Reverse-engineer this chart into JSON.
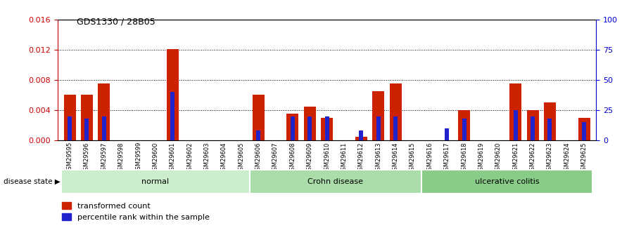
{
  "title": "GDS1330 / 28B05",
  "categories": [
    "GSM29595",
    "GSM29596",
    "GSM29597",
    "GSM29598",
    "GSM29599",
    "GSM29600",
    "GSM29601",
    "GSM29602",
    "GSM29603",
    "GSM29604",
    "GSM29605",
    "GSM29606",
    "GSM29607",
    "GSM29608",
    "GSM29609",
    "GSM29610",
    "GSM29611",
    "GSM29612",
    "GSM29613",
    "GSM29614",
    "GSM29615",
    "GSM29616",
    "GSM29617",
    "GSM29618",
    "GSM29619",
    "GSM29620",
    "GSM29621",
    "GSM29622",
    "GSM29623",
    "GSM29624",
    "GSM29625"
  ],
  "red_values": [
    0.006,
    0.006,
    0.0075,
    0.0,
    0.0,
    0.0,
    0.0121,
    0.0,
    0.0,
    0.0,
    0.0,
    0.006,
    0.0,
    0.0035,
    0.0045,
    0.003,
    0.0,
    0.0005,
    0.0065,
    0.0075,
    0.0,
    0.0,
    0.0,
    0.004,
    0.0,
    0.0,
    0.0075,
    0.004,
    0.005,
    0.0,
    0.003
  ],
  "blue_values_pct": [
    20,
    18,
    20,
    0,
    0,
    0,
    40,
    0,
    0,
    0,
    0,
    8,
    0,
    20,
    20,
    20,
    0,
    8,
    20,
    20,
    0,
    0,
    10,
    18,
    0,
    0,
    25,
    20,
    18,
    0,
    15
  ],
  "ylim_left": [
    0,
    0.016
  ],
  "ylim_right": [
    0,
    100
  ],
  "yticks_left": [
    0,
    0.004,
    0.008,
    0.012,
    0.016
  ],
  "yticks_right": [
    0,
    25,
    50,
    75,
    100
  ],
  "left_axis_color": "#cc0000",
  "right_axis_color": "#0000cc",
  "bar_red_color": "#cc2200",
  "bar_blue_color": "#2222cc",
  "group_boundaries": [
    {
      "label": "normal",
      "start": 0,
      "end": 10,
      "color": "#cceecc"
    },
    {
      "label": "Crohn disease",
      "start": 11,
      "end": 20,
      "color": "#aaddaa"
    },
    {
      "label": "ulcerative colitis",
      "start": 21,
      "end": 30,
      "color": "#88cc88"
    }
  ],
  "tick_bg_color": "#cccccc",
  "disease_state_label": "disease state",
  "legend_red": "transformed count",
  "legend_blue": "percentile rank within the sample"
}
